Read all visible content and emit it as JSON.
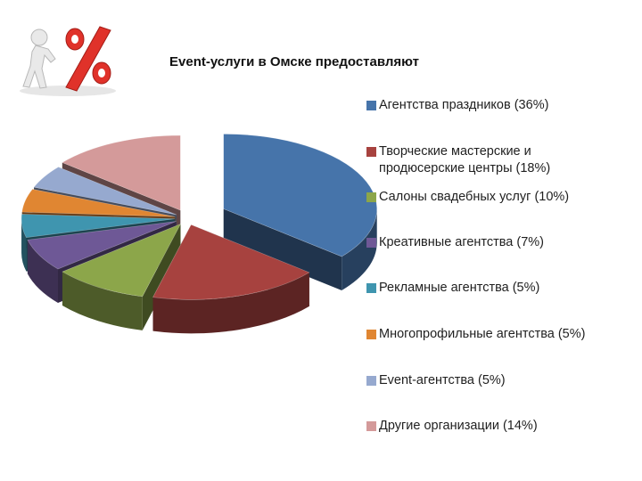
{
  "chart_data": {
    "type": "pie",
    "style": "3d-exploded",
    "title": "Event-услуги в Омске предоставляют",
    "legend_position": "right",
    "unit": "%",
    "categories": [
      "Агентства праздников (36%)",
      "Творческие мастерские и продюсерские центры (18%)",
      "Салоны свадебных услуг (10%)",
      "Креативные агентства (7%)",
      "Рекламные агентства (5%)",
      "Многопрофильные агентства (5%)",
      "Event-агентства (5%)",
      "Другие организации (14%)"
    ],
    "values": [
      36,
      18,
      10,
      7,
      5,
      5,
      5,
      14
    ],
    "colors": [
      "#4674AA",
      "#A7423F",
      "#8CA64A",
      "#6E5896",
      "#3F95AF",
      "#E08632",
      "#96A9CF",
      "#D49A9A"
    ]
  },
  "icons": {
    "logo": "percent-figure-icon"
  }
}
